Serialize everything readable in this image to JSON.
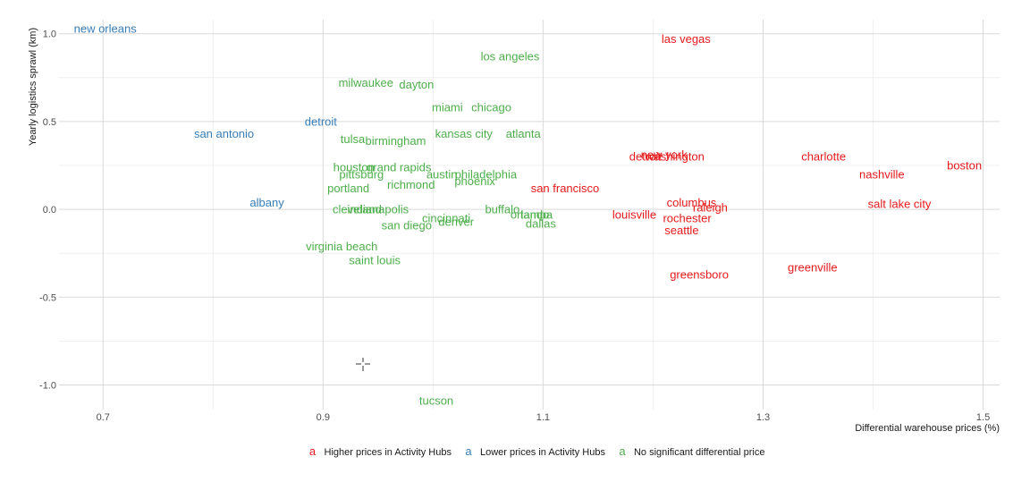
{
  "chart_data": {
    "type": "scatter",
    "title": "",
    "xlabel": "Differential warehouse prices (%)",
    "ylabel": "Yearly logistics sprawl (km)",
    "xlim": [
      0.66,
      1.515
    ],
    "ylim": [
      -1.14,
      1.08
    ],
    "x_ticks": [
      0.7,
      0.9,
      1.1,
      1.3,
      1.5
    ],
    "x_tick_labels": [
      "0.7",
      "0.9",
      "1.1",
      "1.3",
      "1.5"
    ],
    "y_ticks": [
      -1.0,
      -0.5,
      0.0,
      0.5,
      1.0
    ],
    "y_tick_labels": [
      "-1.0",
      "-0.5",
      "0.0",
      "0.5",
      "1.0"
    ],
    "grid": true,
    "legend_position": "bottom",
    "legend_key_glyph": "a",
    "colors": {
      "higher": "#e41a1c",
      "lower": "#377eb8",
      "none": "#4daf4a"
    },
    "series": [
      {
        "name": "Higher prices in Activity Hubs",
        "key": "higher",
        "points": [
          {
            "label": "las vegas",
            "x": 1.23,
            "y": 0.97
          },
          {
            "label": "new york",
            "x": 1.21,
            "y": 0.31
          },
          {
            "label": "washington",
            "x": 1.22,
            "y": 0.3
          },
          {
            "label": "charlotte",
            "x": 1.355,
            "y": 0.3
          },
          {
            "label": "boston",
            "x": 1.483,
            "y": 0.25
          },
          {
            "label": "nashville",
            "x": 1.408,
            "y": 0.2
          },
          {
            "label": "san francisco",
            "x": 1.12,
            "y": 0.12
          },
          {
            "label": "columbus",
            "x": 1.235,
            "y": 0.04
          },
          {
            "label": "raleigh",
            "x": 1.252,
            "y": 0.01
          },
          {
            "label": "salt lake city",
            "x": 1.424,
            "y": 0.03
          },
          {
            "label": "louisville",
            "x": 1.183,
            "y": -0.03
          },
          {
            "label": "rochester",
            "x": 1.231,
            "y": -0.05
          },
          {
            "label": "seattle",
            "x": 1.226,
            "y": -0.12
          },
          {
            "label": "greenville",
            "x": 1.345,
            "y": -0.33
          },
          {
            "label": "greensboro",
            "x": 1.242,
            "y": -0.37
          },
          {
            "label": "detroit",
            "x": 1.193,
            "y": 0.3
          }
        ]
      },
      {
        "name": "Lower prices in Activity Hubs",
        "key": "lower",
        "points": [
          {
            "label": "new orleans",
            "x": 0.702,
            "y": 1.03
          },
          {
            "label": "san antonio",
            "x": 0.81,
            "y": 0.43
          },
          {
            "label": "detroit",
            "x": 0.898,
            "y": 0.5
          },
          {
            "label": "albany",
            "x": 0.849,
            "y": 0.04
          }
        ]
      },
      {
        "name": "No significant differential price",
        "key": "none",
        "points": [
          {
            "label": "los angeles",
            "x": 1.07,
            "y": 0.87
          },
          {
            "label": "milwaukee",
            "x": 0.939,
            "y": 0.72
          },
          {
            "label": "dayton",
            "x": 0.985,
            "y": 0.71
          },
          {
            "label": "miami",
            "x": 1.013,
            "y": 0.58
          },
          {
            "label": "chicago",
            "x": 1.053,
            "y": 0.58
          },
          {
            "label": "tulsa",
            "x": 0.927,
            "y": 0.4
          },
          {
            "label": "birmingham",
            "x": 0.966,
            "y": 0.39
          },
          {
            "label": "kansas city",
            "x": 1.028,
            "y": 0.43
          },
          {
            "label": "atlanta",
            "x": 1.082,
            "y": 0.43
          },
          {
            "label": "houston",
            "x": 0.928,
            "y": 0.24
          },
          {
            "label": "grand rapids",
            "x": 0.969,
            "y": 0.24
          },
          {
            "label": "pittsburg",
            "x": 0.935,
            "y": 0.2
          },
          {
            "label": "austin",
            "x": 1.008,
            "y": 0.2
          },
          {
            "label": "philadelphia",
            "x": 1.048,
            "y": 0.2
          },
          {
            "label": "phoenix",
            "x": 1.038,
            "y": 0.16
          },
          {
            "label": "richmond",
            "x": 0.98,
            "y": 0.14
          },
          {
            "label": "portland",
            "x": 0.923,
            "y": 0.12
          },
          {
            "label": "cleveland",
            "x": 0.931,
            "y": 0.0
          },
          {
            "label": "indianapolis",
            "x": 0.95,
            "y": 0.0
          },
          {
            "label": "cincinnati",
            "x": 1.012,
            "y": -0.05
          },
          {
            "label": "buffalo",
            "x": 1.063,
            "y": 0.0
          },
          {
            "label": "orlando",
            "x": 1.088,
            "y": -0.03
          },
          {
            "label": "tampa",
            "x": 1.094,
            "y": -0.03
          },
          {
            "label": "denver",
            "x": 1.021,
            "y": -0.07
          },
          {
            "label": "dallas",
            "x": 1.098,
            "y": -0.08
          },
          {
            "label": "san diego",
            "x": 0.976,
            "y": -0.09
          },
          {
            "label": "virginia beach",
            "x": 0.917,
            "y": -0.21
          },
          {
            "label": "saint louis",
            "x": 0.947,
            "y": -0.29
          },
          {
            "label": "tucson",
            "x": 1.003,
            "y": -1.09
          }
        ]
      }
    ],
    "legend": [
      {
        "key": "higher",
        "label": "Higher prices in Activity Hubs"
      },
      {
        "key": "lower",
        "label": "Lower prices in Activity Hubs"
      },
      {
        "key": "none",
        "label": "No significant differential price"
      }
    ]
  }
}
